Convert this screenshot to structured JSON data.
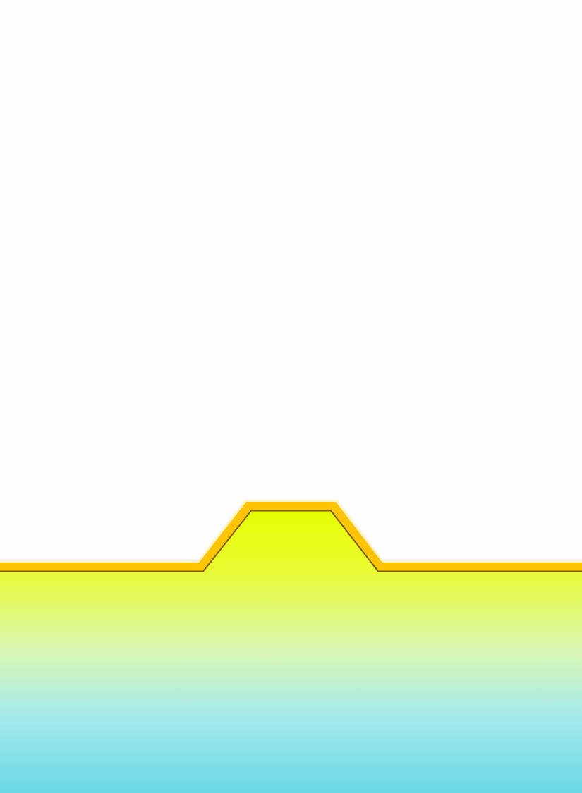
{
  "colors": {
    "background": "#fefefe",
    "border_gold": "#ffc400",
    "border_shadow": "#7a5a00",
    "panel_top": "#e6ff00",
    "panel_mid": "#d9f7b4",
    "panel_bottom": "#6bd8e6"
  }
}
